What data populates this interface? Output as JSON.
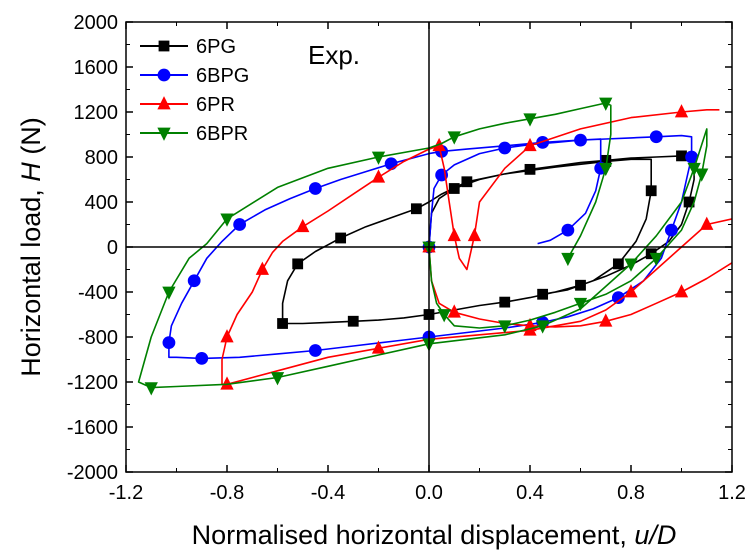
{
  "chart_data": {
    "type": "line",
    "annotation": "Exp.",
    "xlabel": {
      "main": "Normalised horizontal displacement, ",
      "var": "u/D"
    },
    "ylabel": {
      "main": "Horizontal load, ",
      "var": "H",
      "unit": " (N)"
    },
    "xlim": [
      -1.2,
      1.2
    ],
    "ylim": [
      -2000,
      2000
    ],
    "x_ticks": [
      -1.2,
      -0.8,
      -0.4,
      0.0,
      0.4,
      0.8,
      1.2
    ],
    "x_tick_labels": [
      "-1.2",
      "-0.8",
      "-0.4",
      "0.0",
      "0.4",
      "0.8",
      "1.2"
    ],
    "y_ticks": [
      -2000,
      -1600,
      -1200,
      -800,
      -400,
      0,
      400,
      800,
      1200,
      1600,
      2000
    ],
    "y_tick_labels": [
      "-2000",
      "-1600",
      "-1200",
      "-800",
      "-400",
      "0",
      "400",
      "800",
      "1200",
      "1600",
      "2000"
    ],
    "grid": false,
    "legend_position": "top-left",
    "series": [
      {
        "name": "6PG",
        "color": "#000000",
        "marker": "square",
        "points": [
          [
            0.0,
            0
          ],
          [
            0.01,
            300
          ],
          [
            0.04,
            430
          ],
          [
            0.1,
            520
          ],
          [
            0.2,
            600
          ],
          [
            0.3,
            650
          ],
          [
            0.4,
            690
          ],
          [
            0.5,
            720
          ],
          [
            0.6,
            750
          ],
          [
            0.7,
            770
          ],
          [
            0.8,
            790
          ],
          [
            0.9,
            800
          ],
          [
            1.0,
            810
          ],
          [
            1.05,
            820
          ],
          [
            1.05,
            600
          ],
          [
            1.03,
            400
          ],
          [
            1.0,
            200
          ],
          [
            0.95,
            50
          ],
          [
            0.88,
            -60
          ],
          [
            0.8,
            -160
          ],
          [
            0.7,
            -260
          ],
          [
            0.6,
            -340
          ],
          [
            0.5,
            -400
          ],
          [
            0.4,
            -450
          ],
          [
            0.3,
            -490
          ],
          [
            0.2,
            -520
          ],
          [
            0.1,
            -560
          ],
          [
            0.0,
            -600
          ],
          [
            -0.1,
            -630
          ],
          [
            -0.2,
            -650
          ],
          [
            -0.3,
            -660
          ],
          [
            -0.4,
            -670
          ],
          [
            -0.5,
            -680
          ],
          [
            -0.58,
            -680
          ],
          [
            -0.58,
            -500
          ],
          [
            -0.56,
            -300
          ],
          [
            -0.52,
            -150
          ],
          [
            -0.45,
            -40
          ],
          [
            -0.4,
            20
          ],
          [
            -0.35,
            80
          ],
          [
            -0.25,
            180
          ],
          [
            -0.15,
            260
          ],
          [
            -0.05,
            340
          ],
          [
            0.0,
            400
          ],
          [
            0.05,
            470
          ],
          [
            0.15,
            580
          ],
          [
            0.3,
            650
          ],
          [
            0.5,
            710
          ],
          [
            0.7,
            760
          ],
          [
            0.8,
            780
          ],
          [
            0.88,
            780
          ],
          [
            0.88,
            500
          ],
          [
            0.86,
            250
          ],
          [
            0.82,
            50
          ],
          [
            0.75,
            -150
          ],
          [
            0.65,
            -300
          ],
          [
            0.55,
            -380
          ],
          [
            0.45,
            -420
          ]
        ]
      },
      {
        "name": "6BPG",
        "color": "#0000ff",
        "marker": "circle",
        "points": [
          [
            0.0,
            0
          ],
          [
            0.01,
            300
          ],
          [
            0.02,
            520
          ],
          [
            0.05,
            640
          ],
          [
            0.1,
            730
          ],
          [
            0.2,
            830
          ],
          [
            0.3,
            880
          ],
          [
            0.4,
            910
          ],
          [
            0.5,
            930
          ],
          [
            0.6,
            950
          ],
          [
            0.7,
            960
          ],
          [
            0.8,
            970
          ],
          [
            0.9,
            980
          ],
          [
            1.0,
            990
          ],
          [
            1.04,
            980
          ],
          [
            1.04,
            800
          ],
          [
            1.02,
            600
          ],
          [
            1.0,
            400
          ],
          [
            0.96,
            150
          ],
          [
            0.92,
            -100
          ],
          [
            0.85,
            -300
          ],
          [
            0.75,
            -450
          ],
          [
            0.65,
            -550
          ],
          [
            0.55,
            -620
          ],
          [
            0.45,
            -670
          ],
          [
            0.3,
            -720
          ],
          [
            0.15,
            -760
          ],
          [
            0.0,
            -800
          ],
          [
            -0.15,
            -840
          ],
          [
            -0.3,
            -880
          ],
          [
            -0.45,
            -920
          ],
          [
            -0.6,
            -950
          ],
          [
            -0.75,
            -980
          ],
          [
            -0.9,
            -990
          ],
          [
            -1.0,
            -980
          ],
          [
            -1.03,
            -980
          ],
          [
            -1.03,
            -850
          ],
          [
            -1.02,
            -700
          ],
          [
            -0.98,
            -500
          ],
          [
            -0.93,
            -300
          ],
          [
            -0.88,
            -100
          ],
          [
            -0.82,
            50
          ],
          [
            -0.75,
            200
          ],
          [
            -0.65,
            330
          ],
          [
            -0.55,
            430
          ],
          [
            -0.45,
            520
          ],
          [
            -0.35,
            600
          ],
          [
            -0.25,
            670
          ],
          [
            -0.15,
            740
          ],
          [
            -0.05,
            800
          ],
          [
            0.0,
            830
          ],
          [
            0.05,
            850
          ],
          [
            0.15,
            870
          ],
          [
            0.3,
            900
          ],
          [
            0.45,
            930
          ],
          [
            0.6,
            950
          ],
          [
            0.68,
            960
          ],
          [
            0.68,
            700
          ],
          [
            0.66,
            500
          ],
          [
            0.62,
            300
          ],
          [
            0.55,
            150
          ],
          [
            0.48,
            60
          ],
          [
            0.43,
            30
          ]
        ]
      },
      {
        "name": "6PR",
        "color": "#ff0000",
        "marker": "triangle-up",
        "points": [
          [
            0.0,
            0
          ],
          [
            0.01,
            -300
          ],
          [
            0.04,
            -500
          ],
          [
            0.1,
            -580
          ],
          [
            0.2,
            -640
          ],
          [
            0.3,
            -680
          ],
          [
            0.4,
            -700
          ],
          [
            0.5,
            -710
          ],
          [
            0.6,
            -700
          ],
          [
            0.7,
            -660
          ],
          [
            0.8,
            -600
          ],
          [
            0.9,
            -500
          ],
          [
            1.0,
            -400
          ],
          [
            1.1,
            -280
          ],
          [
            1.2,
            -140
          ],
          [
            1.24,
            0
          ],
          [
            1.25,
            150
          ],
          [
            1.2,
            250
          ],
          [
            1.1,
            200
          ],
          [
            1.0,
            0
          ],
          [
            0.9,
            -200
          ],
          [
            0.8,
            -400
          ],
          [
            0.7,
            -560
          ],
          [
            0.6,
            -660
          ],
          [
            0.4,
            -740
          ],
          [
            0.2,
            -780
          ],
          [
            0.0,
            -820
          ],
          [
            -0.2,
            -900
          ],
          [
            -0.4,
            -980
          ],
          [
            -0.6,
            -1100
          ],
          [
            -0.8,
            -1220
          ],
          [
            -0.82,
            -1220
          ],
          [
            -0.82,
            -1000
          ],
          [
            -0.8,
            -800
          ],
          [
            -0.76,
            -600
          ],
          [
            -0.7,
            -400
          ],
          [
            -0.66,
            -200
          ],
          [
            -0.62,
            -50
          ],
          [
            -0.58,
            50
          ],
          [
            -0.5,
            180
          ],
          [
            -0.4,
            320
          ],
          [
            -0.3,
            470
          ],
          [
            -0.2,
            620
          ],
          [
            -0.1,
            760
          ],
          [
            0.0,
            870
          ],
          [
            0.04,
            900
          ],
          [
            0.06,
            700
          ],
          [
            0.08,
            400
          ],
          [
            0.1,
            100
          ],
          [
            0.12,
            -100
          ],
          [
            0.15,
            -200
          ],
          [
            0.18,
            100
          ],
          [
            0.2,
            400
          ],
          [
            0.3,
            700
          ],
          [
            0.4,
            900
          ],
          [
            0.6,
            1050
          ],
          [
            0.8,
            1150
          ],
          [
            1.0,
            1200
          ],
          [
            1.1,
            1220
          ],
          [
            1.15,
            1220
          ]
        ]
      },
      {
        "name": "6BPR",
        "color": "#008000",
        "marker": "triangle-down",
        "points": [
          [
            0.0,
            0
          ],
          [
            0.01,
            -300
          ],
          [
            0.03,
            -500
          ],
          [
            0.06,
            -600
          ],
          [
            0.1,
            -700
          ],
          [
            0.2,
            -720
          ],
          [
            0.3,
            -700
          ],
          [
            0.4,
            -650
          ],
          [
            0.5,
            -580
          ],
          [
            0.6,
            -500
          ],
          [
            0.7,
            -420
          ],
          [
            0.8,
            -300
          ],
          [
            0.9,
            -100
          ],
          [
            1.0,
            150
          ],
          [
            1.05,
            400
          ],
          [
            1.08,
            650
          ],
          [
            1.1,
            900
          ],
          [
            1.1,
            1050
          ],
          [
            1.05,
            700
          ],
          [
            1.0,
            400
          ],
          [
            0.9,
            100
          ],
          [
            0.8,
            -150
          ],
          [
            0.7,
            -350
          ],
          [
            0.6,
            -550
          ],
          [
            0.45,
            -700
          ],
          [
            0.3,
            -780
          ],
          [
            0.15,
            -820
          ],
          [
            0.0,
            -860
          ],
          [
            -0.2,
            -960
          ],
          [
            -0.4,
            -1060
          ],
          [
            -0.6,
            -1160
          ],
          [
            -0.8,
            -1220
          ],
          [
            -1.0,
            -1240
          ],
          [
            -1.1,
            -1250
          ],
          [
            -1.15,
            -1200
          ],
          [
            -1.1,
            -800
          ],
          [
            -1.03,
            -400
          ],
          [
            -0.95,
            -100
          ],
          [
            -0.88,
            30
          ],
          [
            -0.8,
            250
          ],
          [
            -0.6,
            530
          ],
          [
            -0.4,
            700
          ],
          [
            -0.2,
            800
          ],
          [
            0.0,
            880
          ],
          [
            0.05,
            920
          ],
          [
            0.1,
            980
          ],
          [
            0.2,
            1050
          ],
          [
            0.3,
            1100
          ],
          [
            0.4,
            1140
          ],
          [
            0.5,
            1180
          ],
          [
            0.6,
            1230
          ],
          [
            0.7,
            1280
          ],
          [
            0.72,
            1260
          ],
          [
            0.72,
            1000
          ],
          [
            0.7,
            700
          ],
          [
            0.66,
            400
          ],
          [
            0.6,
            100
          ],
          [
            0.55,
            -100
          ]
        ]
      }
    ]
  }
}
